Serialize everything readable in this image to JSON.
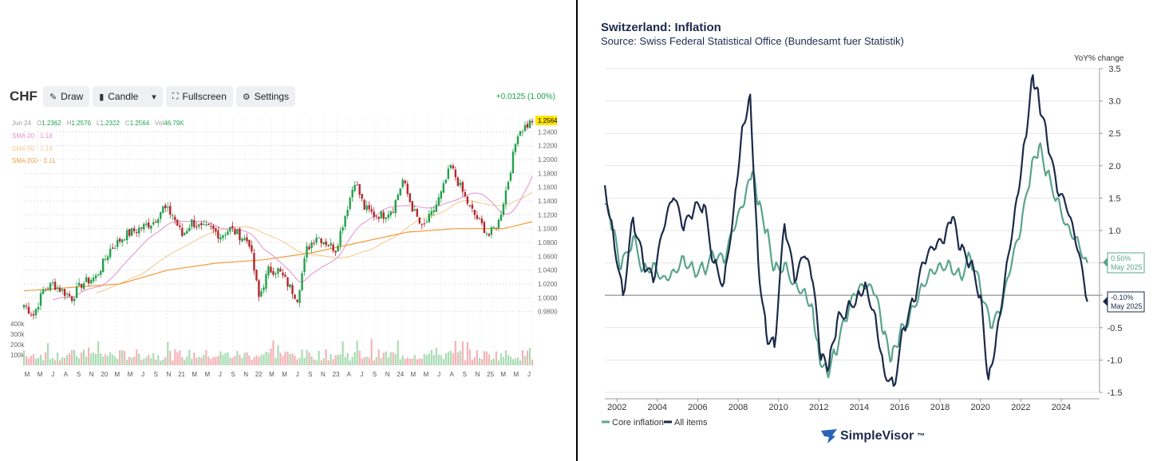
{
  "left": {
    "symbol": "CHF",
    "toolbar": {
      "draw": "Draw",
      "candle": "Candle",
      "fullscreen": "Fullscreen",
      "settings": "Settings"
    },
    "change": "+0.0125 (1.00%)",
    "ohlc": {
      "date": "Jun 24",
      "o": "O",
      "o_val": "1.2362",
      "h": "H",
      "h_val": "1.2576",
      "l": "L",
      "l_val": "1.2332",
      "c": "C",
      "c_val": "1.2564",
      "vol": "Vol",
      "vol_val": "46.79K"
    },
    "sma20": "SMA 20 · 1.18",
    "sma50": "SMA 50 · 1.16",
    "sma200": "SMA 200 · 1.11",
    "last_price": "1.2564",
    "colors": {
      "up": "#22a04b",
      "down": "#b3262d",
      "sma20": "#e48fd0",
      "sma50": "#f3c98b",
      "sma200": "#f29a3a",
      "vol_up": "#a9dcb3",
      "vol_down": "#f3b3b6"
    }
  },
  "right": {
    "title": "Switzerland: Inflation",
    "subtitle": "Source: Swiss Federal Statistical Office (Bundesamt fuer Statistik)",
    "logo": "SimpleVisor",
    "logo_mark": "™",
    "callout_core": {
      "value": "0.50%",
      "date": "May 2025"
    },
    "callout_all": {
      "value": "-0.10%",
      "date": "May 2025"
    }
  },
  "chart_data": [
    {
      "type": "candlestick",
      "title": "CHF",
      "ylim": [
        0.9,
        1.26
      ],
      "y_ticks": [
        "1.2564",
        "1.2400",
        "1.2200",
        "1.2000",
        "1.1800",
        "1.1600",
        "1.1400",
        "1.1200",
        "1.1000",
        "1.0800",
        "1.0600",
        "1.0400",
        "1.0200",
        "1.0000",
        "0.9800"
      ],
      "volume_ticks": [
        "400k",
        "300k",
        "200k",
        "100k"
      ],
      "x_ticks": [
        "M",
        "M",
        "J",
        "A",
        "S",
        "N",
        "20",
        "M",
        "M",
        "J",
        "S",
        "N",
        "21",
        "M",
        "M",
        "J",
        "S",
        "N",
        "22",
        "M",
        "M",
        "J",
        "S",
        "N",
        "23",
        "A",
        "J",
        "S",
        "N",
        "24",
        "M",
        "M",
        "J",
        "A",
        "S",
        "N",
        "25",
        "M",
        "M",
        "J"
      ],
      "close_path": [
        [
          0,
          0.99
        ],
        [
          4,
          0.975
        ],
        [
          8,
          1.01
        ],
        [
          12,
          1.02
        ],
        [
          16,
          1.01
        ],
        [
          20,
          1.0
        ],
        [
          24,
          1.02
        ],
        [
          30,
          1.03
        ],
        [
          36,
          1.07
        ],
        [
          42,
          1.09
        ],
        [
          48,
          1.1
        ],
        [
          54,
          1.11
        ],
        [
          58,
          1.13
        ],
        [
          62,
          1.12
        ],
        [
          66,
          1.09
        ],
        [
          70,
          1.11
        ],
        [
          74,
          1.1
        ],
        [
          78,
          1.1
        ],
        [
          82,
          1.09
        ],
        [
          86,
          1.1
        ],
        [
          90,
          1.09
        ],
        [
          94,
          1.08
        ],
        [
          98,
          1.0
        ],
        [
          102,
          1.04
        ],
        [
          106,
          1.04
        ],
        [
          110,
          1.02
        ],
        [
          114,
          1.0
        ],
        [
          118,
          1.07
        ],
        [
          122,
          1.09
        ],
        [
          126,
          1.08
        ],
        [
          130,
          1.07
        ],
        [
          134,
          1.12
        ],
        [
          138,
          1.17
        ],
        [
          142,
          1.13
        ],
        [
          146,
          1.12
        ],
        [
          150,
          1.12
        ],
        [
          154,
          1.13
        ],
        [
          158,
          1.17
        ],
        [
          162,
          1.13
        ],
        [
          166,
          1.1
        ],
        [
          170,
          1.12
        ],
        [
          174,
          1.15
        ],
        [
          178,
          1.19
        ],
        [
          182,
          1.16
        ],
        [
          186,
          1.13
        ],
        [
          190,
          1.11
        ],
        [
          194,
          1.09
        ],
        [
          198,
          1.11
        ],
        [
          202,
          1.17
        ],
        [
          206,
          1.24
        ],
        [
          210,
          1.25
        ],
        [
          212,
          1.2564
        ]
      ],
      "sma200_path": [
        [
          0,
          1.01
        ],
        [
          40,
          1.02
        ],
        [
          60,
          1.04
        ],
        [
          80,
          1.05
        ],
        [
          100,
          1.055
        ],
        [
          120,
          1.065
        ],
        [
          140,
          1.08
        ],
        [
          160,
          1.095
        ],
        [
          180,
          1.1
        ],
        [
          200,
          1.1
        ],
        [
          212,
          1.11
        ]
      ]
    },
    {
      "type": "line",
      "title": "Switzerland: Inflation",
      "ylabel": "YoY% change",
      "ylim": [
        -1.5,
        3.5
      ],
      "y_ticks": [
        3.5,
        3.0,
        2.5,
        2.0,
        1.5,
        1.0,
        0.5,
        0.0,
        -0.5,
        -1.0,
        -1.5
      ],
      "x_ticks": [
        2002,
        2004,
        2006,
        2008,
        2010,
        2012,
        2014,
        2016,
        2018,
        2020,
        2022,
        2024
      ],
      "series": [
        {
          "name": "Core inflation",
          "color": "#5aa48c",
          "points": [
            [
              2001.4,
              1.4
            ],
            [
              2001.8,
              1.0
            ],
            [
              2002.2,
              0.4
            ],
            [
              2002.8,
              0.9
            ],
            [
              2003.3,
              0.4
            ],
            [
              2003.8,
              0.5
            ],
            [
              2004.3,
              0.3
            ],
            [
              2004.8,
              0.4
            ],
            [
              2005.3,
              0.6
            ],
            [
              2005.8,
              0.4
            ],
            [
              2006.3,
              0.4
            ],
            [
              2006.8,
              0.6
            ],
            [
              2007.3,
              0.5
            ],
            [
              2007.8,
              1.0
            ],
            [
              2008.3,
              1.4
            ],
            [
              2008.7,
              1.9
            ],
            [
              2009.0,
              1.4
            ],
            [
              2009.4,
              1.0
            ],
            [
              2009.8,
              0.4
            ],
            [
              2010.3,
              0.5
            ],
            [
              2010.8,
              0.2
            ],
            [
              2011.3,
              0.1
            ],
            [
              2011.7,
              -0.2
            ],
            [
              2012.0,
              -0.9
            ],
            [
              2012.4,
              -1.2
            ],
            [
              2012.8,
              -0.9
            ],
            [
              2013.3,
              -0.4
            ],
            [
              2013.8,
              0.0
            ],
            [
              2014.3,
              0.1
            ],
            [
              2014.8,
              0.0
            ],
            [
              2015.2,
              -0.6
            ],
            [
              2015.6,
              -1.0
            ],
            [
              2016.0,
              -0.6
            ],
            [
              2016.5,
              -0.3
            ],
            [
              2017.0,
              0.1
            ],
            [
              2017.5,
              0.4
            ],
            [
              2018.0,
              0.5
            ],
            [
              2018.5,
              0.5
            ],
            [
              2019.0,
              0.3
            ],
            [
              2019.5,
              0.6
            ],
            [
              2020.0,
              0.1
            ],
            [
              2020.5,
              -0.5
            ],
            [
              2021.0,
              -0.3
            ],
            [
              2021.5,
              0.4
            ],
            [
              2022.0,
              1.0
            ],
            [
              2022.5,
              1.9
            ],
            [
              2022.9,
              2.3
            ],
            [
              2023.3,
              1.9
            ],
            [
              2023.8,
              1.5
            ],
            [
              2024.3,
              1.1
            ],
            [
              2024.8,
              0.9
            ],
            [
              2025.3,
              0.5
            ]
          ]
        },
        {
          "name": "All items",
          "color": "#1b2a4a",
          "points": [
            [
              2001.4,
              1.7
            ],
            [
              2001.8,
              1.0
            ],
            [
              2002.3,
              0.0
            ],
            [
              2002.8,
              1.2
            ],
            [
              2003.3,
              0.5
            ],
            [
              2003.8,
              0.2
            ],
            [
              2004.3,
              1.0
            ],
            [
              2004.8,
              1.5
            ],
            [
              2005.3,
              1.0
            ],
            [
              2005.8,
              1.3
            ],
            [
              2006.3,
              1.4
            ],
            [
              2006.8,
              0.5
            ],
            [
              2007.3,
              0.2
            ],
            [
              2007.8,
              1.4
            ],
            [
              2008.2,
              2.6
            ],
            [
              2008.6,
              3.1
            ],
            [
              2009.0,
              0.5
            ],
            [
              2009.4,
              -0.6
            ],
            [
              2009.8,
              -0.8
            ],
            [
              2010.3,
              1.1
            ],
            [
              2010.8,
              0.2
            ],
            [
              2011.3,
              0.6
            ],
            [
              2011.7,
              0.2
            ],
            [
              2012.1,
              -1.0
            ],
            [
              2012.5,
              -1.1
            ],
            [
              2012.9,
              -0.4
            ],
            [
              2013.4,
              -0.2
            ],
            [
              2013.9,
              0.0
            ],
            [
              2014.3,
              0.2
            ],
            [
              2014.8,
              -0.3
            ],
            [
              2015.2,
              -1.1
            ],
            [
              2015.7,
              -1.4
            ],
            [
              2016.2,
              -0.5
            ],
            [
              2016.7,
              -0.1
            ],
            [
              2017.2,
              0.5
            ],
            [
              2017.7,
              0.7
            ],
            [
              2018.2,
              0.8
            ],
            [
              2018.6,
              1.2
            ],
            [
              2019.0,
              0.7
            ],
            [
              2019.5,
              0.5
            ],
            [
              2020.0,
              0.0
            ],
            [
              2020.4,
              -1.3
            ],
            [
              2020.8,
              -0.6
            ],
            [
              2021.3,
              0.5
            ],
            [
              2021.8,
              1.5
            ],
            [
              2022.2,
              2.4
            ],
            [
              2022.6,
              3.4
            ],
            [
              2022.9,
              3.0
            ],
            [
              2023.3,
              2.4
            ],
            [
              2023.8,
              1.6
            ],
            [
              2024.3,
              1.3
            ],
            [
              2024.8,
              0.7
            ],
            [
              2025.3,
              -0.1
            ]
          ]
        }
      ]
    }
  ]
}
